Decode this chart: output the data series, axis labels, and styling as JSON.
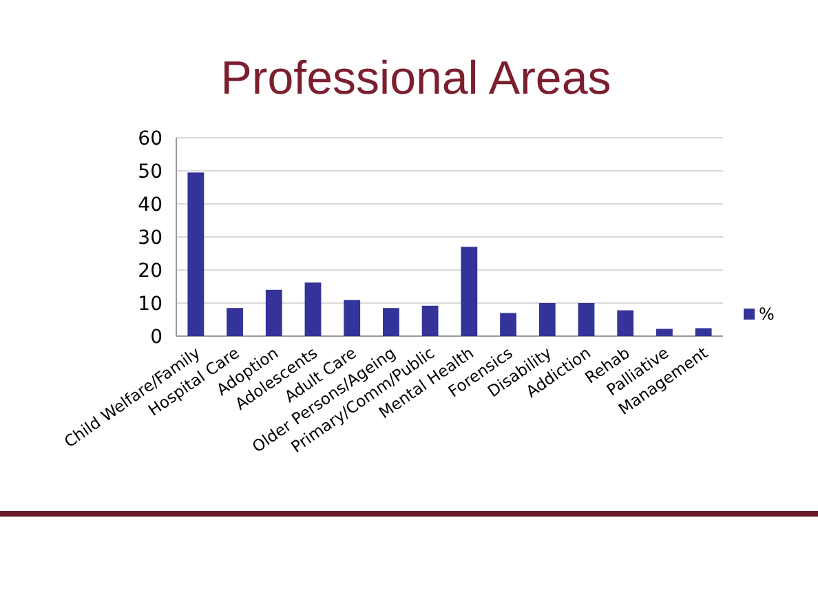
{
  "chart_data": {
    "type": "bar",
    "title": "Professional Areas",
    "categories": [
      "Child Welfare/Family",
      "Hospital Care",
      "Adoption",
      "Adolescents",
      "Adult Care",
      "Older Persons/Ageing",
      "Primary/Comm/Public",
      "Mental Health",
      "Forensics",
      "Disability",
      "Addiction",
      "Rehab",
      "Palliative",
      "Management"
    ],
    "series": [
      {
        "name": "%",
        "color": "#333399",
        "values": [
          49.5,
          8.5,
          14,
          16.2,
          10.9,
          8.5,
          9.2,
          27,
          7,
          10,
          10,
          7.8,
          2.2,
          2.4
        ]
      }
    ],
    "ylim": [
      0,
      60
    ],
    "yticks": [
      0,
      10,
      20,
      30,
      40,
      50,
      60
    ],
    "grid": "y",
    "legend": "right"
  }
}
